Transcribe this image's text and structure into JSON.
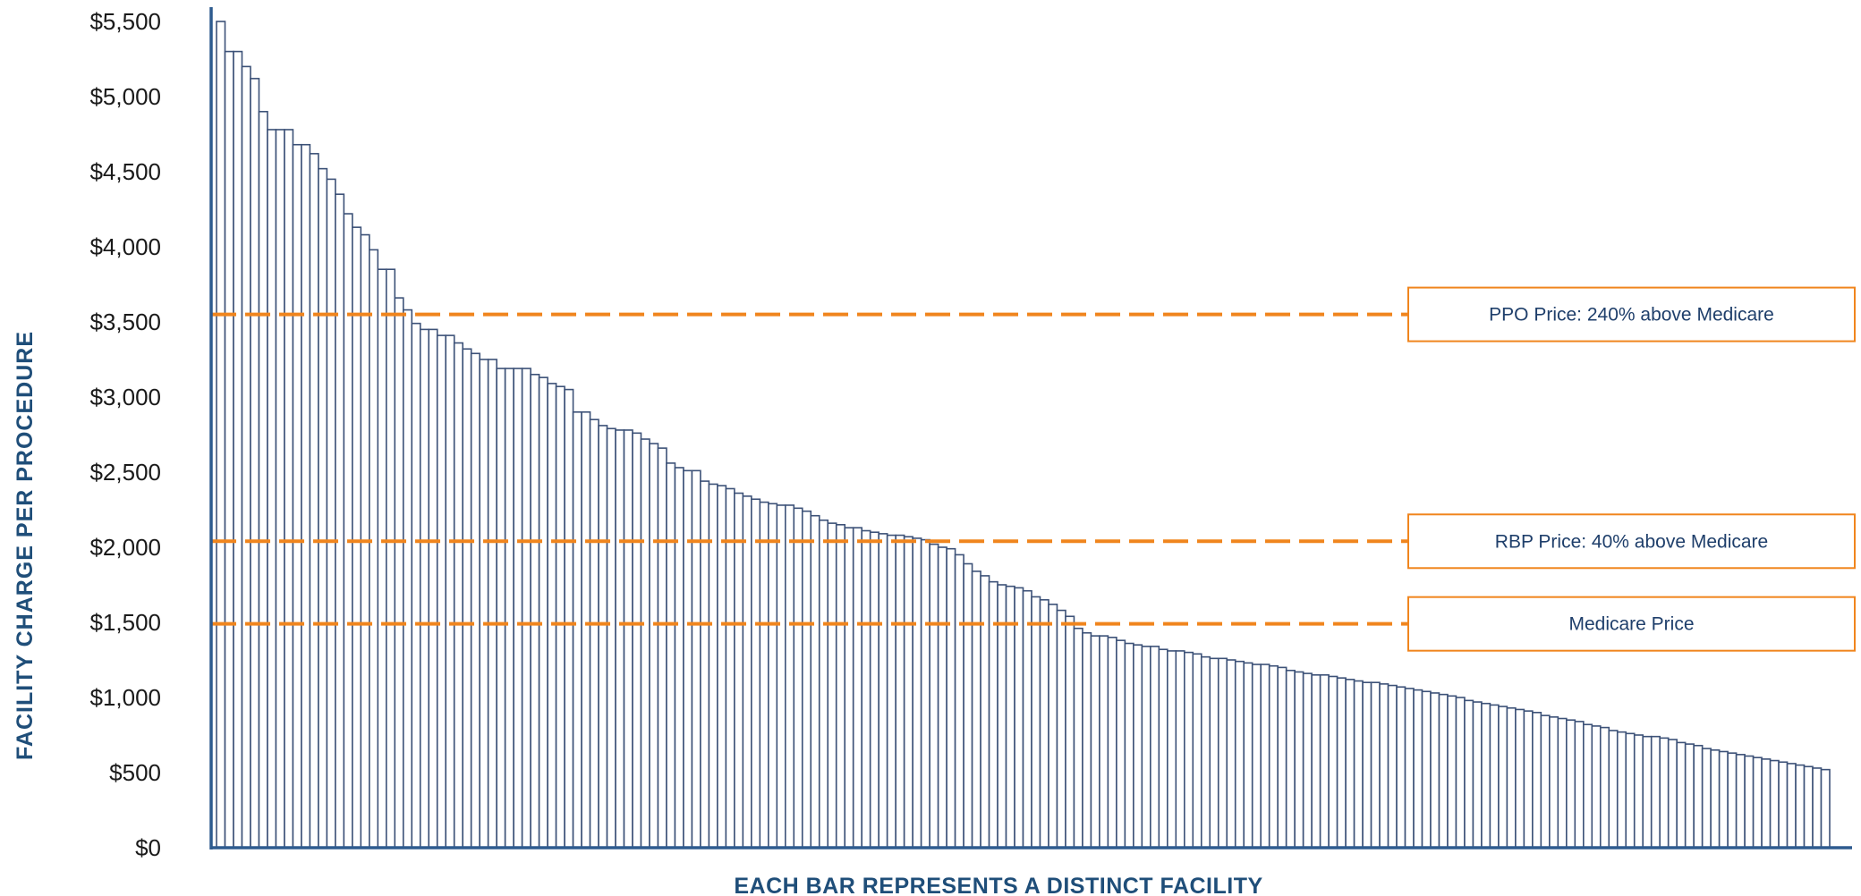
{
  "colors": {
    "bar_stroke": "#3d5278",
    "axis": "#2e5b8f",
    "reference_line": "#f0851d",
    "label_text": "#1f4e79",
    "callout_text": "#1f3f6b"
  },
  "chart_data": {
    "type": "bar",
    "xlabel": "EACH BAR REPRESENTS A DISTINCT FACILITY",
    "ylabel": "FACILITY CHARGE PER PROCEDURE",
    "ylim": [
      0,
      5500
    ],
    "y_ticks": [
      {
        "value": 0,
        "label": "$0"
      },
      {
        "value": 500,
        "label": "$500"
      },
      {
        "value": 1000,
        "label": "$1,000"
      },
      {
        "value": 1500,
        "label": "$1,500"
      },
      {
        "value": 2000,
        "label": "$2,000"
      },
      {
        "value": 2500,
        "label": "$2,500"
      },
      {
        "value": 3000,
        "label": "$3,000"
      },
      {
        "value": 3500,
        "label": "$3,500"
      },
      {
        "value": 4000,
        "label": "$4,000"
      },
      {
        "value": 4500,
        "label": "$4,500"
      },
      {
        "value": 5000,
        "label": "$5,000"
      },
      {
        "value": 5500,
        "label": "$5,500"
      }
    ],
    "grid": false,
    "values": [
      5500,
      5300,
      5300,
      5200,
      5120,
      4900,
      4780,
      4780,
      4780,
      4680,
      4680,
      4620,
      4520,
      4450,
      4350,
      4220,
      4130,
      4080,
      3980,
      3850,
      3850,
      3660,
      3580,
      3490,
      3450,
      3450,
      3410,
      3410,
      3360,
      3320,
      3290,
      3250,
      3250,
      3190,
      3190,
      3190,
      3190,
      3150,
      3130,
      3090,
      3070,
      3050,
      2900,
      2900,
      2850,
      2810,
      2790,
      2780,
      2780,
      2760,
      2720,
      2690,
      2660,
      2560,
      2530,
      2510,
      2510,
      2440,
      2420,
      2410,
      2390,
      2360,
      2340,
      2320,
      2300,
      2290,
      2280,
      2280,
      2260,
      2240,
      2210,
      2180,
      2160,
      2150,
      2130,
      2130,
      2110,
      2100,
      2090,
      2080,
      2080,
      2070,
      2060,
      2050,
      2020,
      2000,
      1990,
      1950,
      1890,
      1840,
      1810,
      1770,
      1750,
      1740,
      1730,
      1710,
      1670,
      1650,
      1620,
      1580,
      1540,
      1460,
      1430,
      1410,
      1410,
      1400,
      1380,
      1360,
      1350,
      1340,
      1340,
      1320,
      1310,
      1310,
      1300,
      1290,
      1270,
      1260,
      1260,
      1250,
      1240,
      1230,
      1220,
      1220,
      1210,
      1200,
      1180,
      1170,
      1160,
      1150,
      1150,
      1140,
      1130,
      1120,
      1110,
      1100,
      1100,
      1090,
      1080,
      1070,
      1060,
      1050,
      1040,
      1030,
      1020,
      1010,
      1000,
      980,
      970,
      960,
      950,
      940,
      930,
      920,
      910,
      900,
      880,
      870,
      860,
      850,
      840,
      820,
      810,
      800,
      780,
      770,
      760,
      750,
      740,
      740,
      730,
      720,
      700,
      690,
      680,
      660,
      650,
      640,
      630,
      620,
      610,
      600,
      590,
      580,
      570,
      560,
      550,
      540,
      530,
      520
    ]
  },
  "reference_lines": [
    {
      "value": 3550,
      "label": "PPO Price:  240% above Medicare"
    },
    {
      "value": 2040,
      "label": "RBP Price:  40% above Medicare"
    },
    {
      "value": 1490,
      "label": "Medicare Price"
    }
  ]
}
